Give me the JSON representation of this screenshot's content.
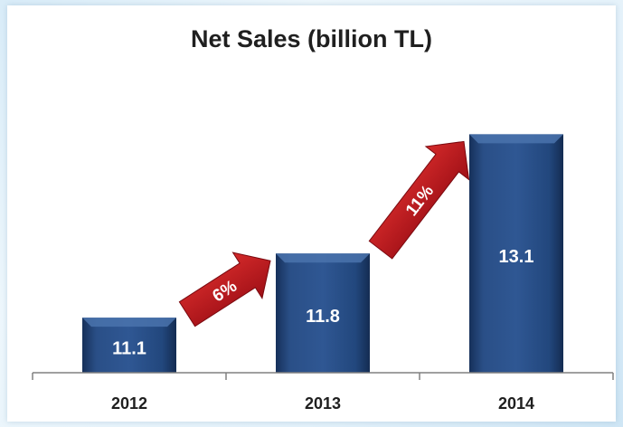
{
  "chart_data": {
    "type": "bar",
    "title": "Net Sales (billion TL)",
    "categories": [
      "2012",
      "2013",
      "2014"
    ],
    "values": [
      11.1,
      11.8,
      13.1
    ],
    "value_labels": [
      "11.1",
      "11.8",
      "13.1"
    ],
    "ylim": [
      10.5,
      13.4
    ],
    "grid": false,
    "growth_annotations": [
      {
        "from": "2012",
        "to": "2013",
        "label": "6%"
      },
      {
        "from": "2013",
        "to": "2014",
        "label": "11%"
      }
    ],
    "colors": {
      "bar": "#1f3f73",
      "bar_light": "#3d66a3",
      "arrow": "#b5121b",
      "axis": "#808080"
    }
  }
}
